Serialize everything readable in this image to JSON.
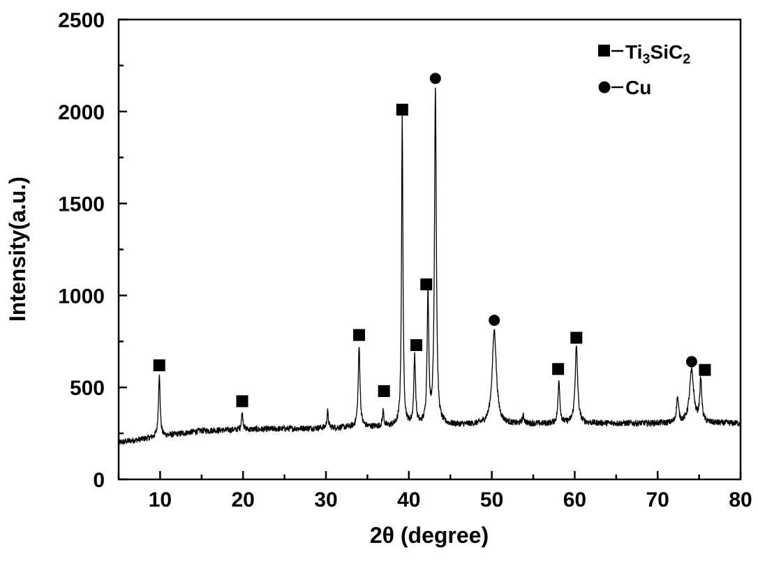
{
  "chart_data": {
    "type": "line",
    "title": "",
    "xlabel": "2θ (degree)",
    "ylabel": "Intensity(a.u.)",
    "xlim": [
      5,
      80
    ],
    "ylim": [
      0,
      2500
    ],
    "x_ticks": [
      10,
      20,
      30,
      40,
      50,
      60,
      70,
      80
    ],
    "y_ticks": [
      0,
      500,
      1000,
      1500,
      2000,
      2500
    ],
    "x_tick_labels": [
      "10",
      "20",
      "30",
      "40",
      "50",
      "60",
      "70",
      "80"
    ],
    "y_tick_labels": [
      "0",
      "500",
      "1000",
      "1500",
      "2000",
      "2500"
    ],
    "grid": false,
    "legend_position": "top-right",
    "legend": [
      {
        "marker": "square",
        "label_main": "Ti",
        "sub1": "3",
        "label_mid": "SiC",
        "sub2": "2"
      },
      {
        "marker": "circle",
        "label_main": "Cu"
      }
    ],
    "peaks": [
      {
        "x": 9.9,
        "y": 570,
        "width": 0.12,
        "phase": "Ti3SiC2"
      },
      {
        "x": 19.9,
        "y": 360,
        "width": 0.12,
        "phase": "Ti3SiC2"
      },
      {
        "x": 30.2,
        "y": 370,
        "width": 0.1,
        "phase": ""
      },
      {
        "x": 34.0,
        "y": 720,
        "width": 0.13,
        "phase": "Ti3SiC2"
      },
      {
        "x": 36.9,
        "y": 370,
        "width": 0.1,
        "phase": "Ti3SiC2"
      },
      {
        "x": 39.2,
        "y": 1970,
        "width": 0.1,
        "phase": "Ti3SiC2"
      },
      {
        "x": 40.7,
        "y": 670,
        "width": 0.12,
        "phase": "Ti3SiC2"
      },
      {
        "x": 42.3,
        "y": 1000,
        "width": 0.12,
        "phase": "Ti3SiC2"
      },
      {
        "x": 43.2,
        "y": 2130,
        "width": 0.13,
        "phase": "Cu"
      },
      {
        "x": 50.3,
        "y": 810,
        "width": 0.3,
        "phase": "Cu"
      },
      {
        "x": 53.8,
        "y": 340,
        "width": 0.15,
        "phase": ""
      },
      {
        "x": 58.1,
        "y": 540,
        "width": 0.13,
        "phase": "Ti3SiC2"
      },
      {
        "x": 60.2,
        "y": 720,
        "width": 0.18,
        "phase": "Ti3SiC2"
      },
      {
        "x": 72.4,
        "y": 440,
        "width": 0.15,
        "phase": ""
      },
      {
        "x": 74.1,
        "y": 590,
        "width": 0.3,
        "phase": "Cu"
      },
      {
        "x": 75.2,
        "y": 530,
        "width": 0.15,
        "phase": "Ti3SiC2"
      }
    ],
    "peak_markers": [
      {
        "x": 9.9,
        "y": 620,
        "marker": "square"
      },
      {
        "x": 19.9,
        "y": 425,
        "marker": "square"
      },
      {
        "x": 34.0,
        "y": 785,
        "marker": "square"
      },
      {
        "x": 37.0,
        "y": 480,
        "marker": "square"
      },
      {
        "x": 39.2,
        "y": 2010,
        "marker": "square"
      },
      {
        "x": 40.9,
        "y": 730,
        "marker": "square"
      },
      {
        "x": 42.1,
        "y": 1060,
        "marker": "square"
      },
      {
        "x": 43.2,
        "y": 2180,
        "marker": "circle"
      },
      {
        "x": 50.3,
        "y": 865,
        "marker": "circle"
      },
      {
        "x": 58.0,
        "y": 600,
        "marker": "square"
      },
      {
        "x": 60.2,
        "y": 770,
        "marker": "square"
      },
      {
        "x": 74.1,
        "y": 640,
        "marker": "circle"
      },
      {
        "x": 75.7,
        "y": 595,
        "marker": "square"
      }
    ],
    "background": [
      [
        5,
        200
      ],
      [
        15,
        265
      ],
      [
        30,
        280
      ],
      [
        45,
        295
      ],
      [
        60,
        305
      ],
      [
        80,
        305
      ]
    ]
  }
}
